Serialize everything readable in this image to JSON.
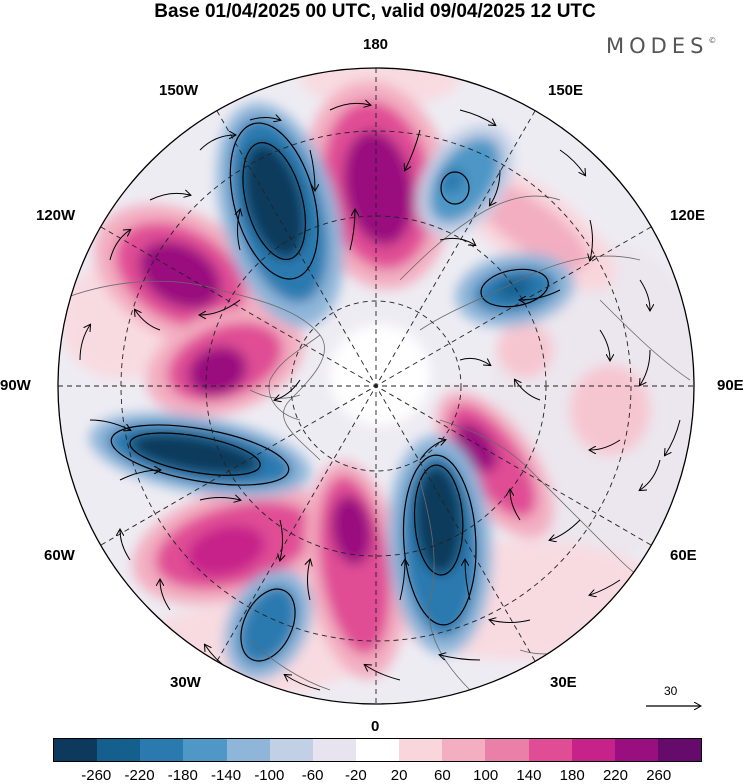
{
  "title": "Base 01/04/2025 00 UTC, valid 09/04/2025 12 UTC",
  "logo": "MODES",
  "logo_mark": "©",
  "lon_labels": {
    "n180": "180",
    "w150": "150W",
    "e150": "150E",
    "w120": "120W",
    "e120": "120E",
    "w90": "90W",
    "e90": "90E",
    "w60": "60W",
    "e60": "60E",
    "w30": "30W",
    "e30": "30E",
    "s0": "0"
  },
  "reference_vector": "30",
  "colorbar": {
    "colors": [
      "#0d3a5c",
      "#155f8f",
      "#2a7ab0",
      "#4e97c6",
      "#8fb6d9",
      "#c2d0e6",
      "#e7e4f0",
      "#ffffff",
      "#f9d6dc",
      "#f3aec1",
      "#ea7fa8",
      "#e04d95",
      "#c6228a",
      "#9a0f7f",
      "#660b6c"
    ],
    "labels": [
      "-260",
      "-220",
      "-180",
      "-140",
      "-100",
      "-60",
      "-20",
      "20",
      "60",
      "100",
      "140",
      "180",
      "220",
      "260"
    ]
  }
}
